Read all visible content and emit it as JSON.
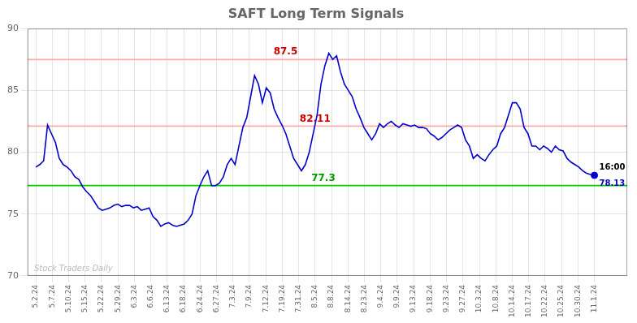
{
  "chart_data": {
    "type": "line",
    "title": "SAFT Long Term Signals",
    "xlim": [
      -0.5,
      36
    ],
    "xticks": [
      {
        "value": 0,
        "label": "5.2.24"
      },
      {
        "value": 1,
        "label": "5.7.24"
      },
      {
        "value": 2,
        "label": "5.10.24"
      },
      {
        "value": 3,
        "label": "5.15.24"
      },
      {
        "value": 4,
        "label": "5.22.24"
      },
      {
        "value": 5,
        "label": "5.29.24"
      },
      {
        "value": 6,
        "label": "6.3.24"
      },
      {
        "value": 7,
        "label": "6.6.24"
      },
      {
        "value": 8,
        "label": "6.13.24"
      },
      {
        "value": 9,
        "label": "6.18.24"
      },
      {
        "value": 10,
        "label": "6.24.24"
      },
      {
        "value": 11,
        "label": "6.27.24"
      },
      {
        "value": 12,
        "label": "7.3.24"
      },
      {
        "value": 13,
        "label": "7.9.24"
      },
      {
        "value": 14,
        "label": "7.12.24"
      },
      {
        "value": 15,
        "label": "7.19.24"
      },
      {
        "value": 16,
        "label": "7.31.24"
      },
      {
        "value": 17,
        "label": "8.5.24"
      },
      {
        "value": 18,
        "label": "8.8.24"
      },
      {
        "value": 19,
        "label": "8.14.24"
      },
      {
        "value": 20,
        "label": "8.23.24"
      },
      {
        "value": 21,
        "label": "9.4.24"
      },
      {
        "value": 22,
        "label": "9.9.24"
      },
      {
        "value": 23,
        "label": "9.13.24"
      },
      {
        "value": 24,
        "label": "9.18.24"
      },
      {
        "value": 25,
        "label": "9.23.24"
      },
      {
        "value": 26,
        "label": "9.27.24"
      },
      {
        "value": 27,
        "label": "10.3.24"
      },
      {
        "value": 28,
        "label": "10.8.24"
      },
      {
        "value": 29,
        "label": "10.14.24"
      },
      {
        "value": 30,
        "label": "10.17.24"
      },
      {
        "value": 31,
        "label": "10.22.24"
      },
      {
        "value": 32,
        "label": "10.25.24"
      },
      {
        "value": 33,
        "label": "10.30.24"
      },
      {
        "value": 34,
        "label": "11.1.24"
      }
    ],
    "ylim": [
      70,
      90
    ],
    "yticks": [
      70,
      75,
      80,
      85,
      90
    ],
    "grid": true,
    "color": "#0000cc",
    "x": [
      0,
      0.2378,
      0.4755,
      0.7133,
      0.951,
      1.1888,
      1.4266,
      1.6643,
      1.9021,
      2.1399,
      2.3776,
      2.6154,
      2.8531,
      3.0909,
      3.3287,
      3.5664,
      3.8042,
      4.042,
      4.2797,
      4.5175,
      4.7552,
      4.993,
      5.2308,
      5.4685,
      5.7063,
      5.9441,
      6.1818,
      6.4196,
      6.6573,
      6.8951,
      7.1329,
      7.3706,
      7.6084,
      7.8462,
      8.0839,
      8.3217,
      8.5594,
      8.7972,
      9.035,
      9.2727,
      9.5105,
      9.7483,
      9.986,
      10.2238,
      10.4615,
      10.6993,
      10.9371,
      11.1748,
      11.4126,
      11.6503,
      11.8881,
      12.1259,
      12.3636,
      12.6014,
      12.8392,
      13.0769,
      13.3147,
      13.5524,
      13.7902,
      14.028,
      14.2657,
      14.5035,
      14.7413,
      14.979,
      15.2168,
      15.4545,
      15.6923,
      15.9301,
      16.1678,
      16.4056,
      16.6434,
      16.8811,
      17.1189,
      17.3566,
      17.5944,
      17.8322,
      18.0699,
      18.3077,
      18.5455,
      18.7832,
      19.021,
      19.2587,
      19.4965,
      19.7343,
      19.972,
      20.2098,
      20.4476,
      20.6853,
      20.9231,
      21.1608,
      21.3986,
      21.6364,
      21.8741,
      22.1119,
      22.3497,
      22.5874,
      22.8252,
      23.0629,
      23.3007,
      23.5385,
      23.7762,
      24.014,
      24.2517,
      24.4895,
      24.7273,
      24.965,
      25.2028,
      25.4406,
      25.6783,
      25.9161,
      26.1538,
      26.3916,
      26.6294,
      26.8671,
      27.1049,
      27.3427,
      27.5804,
      27.8182,
      28.0559,
      28.2937,
      28.5315,
      28.7692,
      29.007,
      29.2448,
      29.4825,
      29.7203,
      29.958,
      30.1958,
      30.4336,
      30.6713,
      30.9091,
      31.1469,
      31.3846,
      31.6224,
      31.8601,
      32.0979,
      32.3357,
      32.5734,
      32.8112,
      33.049,
      33.2867,
      33.5245,
      33.7622,
      34
    ],
    "values": [
      78.8,
      79.0,
      79.3,
      82.2,
      81.5,
      80.8,
      79.5,
      79.0,
      78.8,
      78.5,
      78.0,
      77.8,
      77.2,
      76.8,
      76.5,
      76.0,
      75.5,
      75.3,
      75.4,
      75.5,
      75.7,
      75.8,
      75.6,
      75.7,
      75.7,
      75.5,
      75.6,
      75.3,
      75.4,
      75.5,
      74.8,
      74.5,
      74.0,
      74.2,
      74.3,
      74.1,
      74.0,
      74.1,
      74.2,
      74.5,
      75.0,
      76.5,
      77.3,
      78.0,
      78.5,
      77.3,
      77.3,
      77.5,
      78.0,
      79.0,
      79.5,
      79.0,
      80.5,
      82.0,
      82.8,
      84.5,
      86.2,
      85.5,
      84.0,
      85.2,
      84.8,
      83.5,
      82.8,
      82.2,
      81.5,
      80.5,
      79.5,
      79.0,
      78.5,
      79.0,
      80.0,
      81.5,
      83.0,
      85.5,
      87.0,
      88.0,
      87.5,
      87.8,
      86.5,
      85.5,
      85.0,
      84.5,
      83.5,
      82.8,
      82.0,
      81.5,
      81.0,
      81.5,
      82.3,
      82.0,
      82.3,
      82.5,
      82.2,
      82.0,
      82.3,
      82.2,
      82.1,
      82.2,
      82.0,
      82.0,
      81.9,
      81.5,
      81.3,
      81.0,
      81.2,
      81.5,
      81.8,
      82.0,
      82.2,
      82.0,
      81.0,
      80.5,
      79.5,
      79.8,
      79.5,
      79.3,
      79.8,
      80.2,
      80.5,
      81.5,
      82.0,
      83.0,
      84.0,
      84.0,
      83.5,
      82.0,
      81.5,
      80.5,
      80.5,
      80.2,
      80.5,
      80.3,
      80.0,
      80.5,
      80.2,
      80.1,
      79.5,
      79.2,
      79.0,
      78.8,
      78.5,
      78.3,
      78.2,
      78.13
    ],
    "hlines": [
      {
        "value": 87.5,
        "color": "#ffaaaa",
        "label": "87.5",
        "label_color": "#cc0000"
      },
      {
        "value": 82.11,
        "color": "#ffaaaa",
        "label": "82.11",
        "label_color": "#cc0000"
      },
      {
        "value": 77.3,
        "color": "#00cc00",
        "label": "77.3",
        "label_color": "#009900"
      }
    ],
    "last_point": {
      "label": "16:00",
      "value_label": "78.13",
      "color": "#0000cc"
    },
    "watermark": {
      "text": "Stock Traders Daily",
      "color": "#bbbbbb"
    }
  }
}
